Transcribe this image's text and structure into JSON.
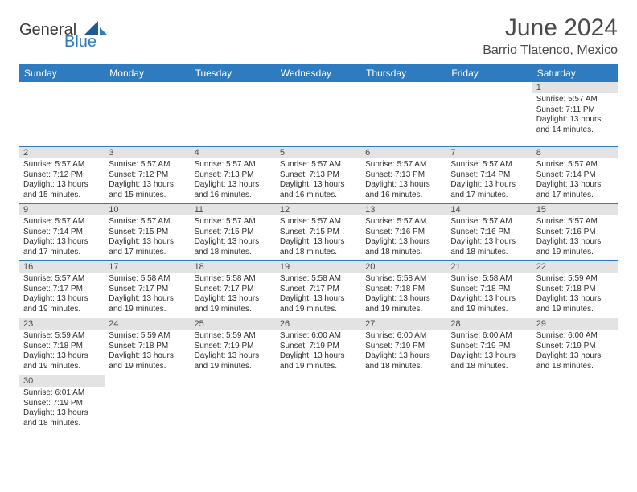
{
  "logo": {
    "word1": "General",
    "word2": "Blue"
  },
  "title": "June 2024",
  "location": "Barrio Tlatenco, Mexico",
  "colors": {
    "header_bg": "#2f7bbf",
    "header_text": "#ffffff",
    "daynum_bg": "#e3e3e3",
    "cell_border": "#2f7bbf",
    "body_text": "#303030",
    "title_text": "#4a4a4a"
  },
  "weekday_labels": [
    "Sunday",
    "Monday",
    "Tuesday",
    "Wednesday",
    "Thursday",
    "Friday",
    "Saturday"
  ],
  "days": {
    "1": {
      "sunrise": "5:57 AM",
      "sunset": "7:11 PM",
      "daylight": "13 hours and 14 minutes."
    },
    "2": {
      "sunrise": "5:57 AM",
      "sunset": "7:12 PM",
      "daylight": "13 hours and 15 minutes."
    },
    "3": {
      "sunrise": "5:57 AM",
      "sunset": "7:12 PM",
      "daylight": "13 hours and 15 minutes."
    },
    "4": {
      "sunrise": "5:57 AM",
      "sunset": "7:13 PM",
      "daylight": "13 hours and 16 minutes."
    },
    "5": {
      "sunrise": "5:57 AM",
      "sunset": "7:13 PM",
      "daylight": "13 hours and 16 minutes."
    },
    "6": {
      "sunrise": "5:57 AM",
      "sunset": "7:13 PM",
      "daylight": "13 hours and 16 minutes."
    },
    "7": {
      "sunrise": "5:57 AM",
      "sunset": "7:14 PM",
      "daylight": "13 hours and 17 minutes."
    },
    "8": {
      "sunrise": "5:57 AM",
      "sunset": "7:14 PM",
      "daylight": "13 hours and 17 minutes."
    },
    "9": {
      "sunrise": "5:57 AM",
      "sunset": "7:14 PM",
      "daylight": "13 hours and 17 minutes."
    },
    "10": {
      "sunrise": "5:57 AM",
      "sunset": "7:15 PM",
      "daylight": "13 hours and 17 minutes."
    },
    "11": {
      "sunrise": "5:57 AM",
      "sunset": "7:15 PM",
      "daylight": "13 hours and 18 minutes."
    },
    "12": {
      "sunrise": "5:57 AM",
      "sunset": "7:15 PM",
      "daylight": "13 hours and 18 minutes."
    },
    "13": {
      "sunrise": "5:57 AM",
      "sunset": "7:16 PM",
      "daylight": "13 hours and 18 minutes."
    },
    "14": {
      "sunrise": "5:57 AM",
      "sunset": "7:16 PM",
      "daylight": "13 hours and 18 minutes."
    },
    "15": {
      "sunrise": "5:57 AM",
      "sunset": "7:16 PM",
      "daylight": "13 hours and 19 minutes."
    },
    "16": {
      "sunrise": "5:57 AM",
      "sunset": "7:17 PM",
      "daylight": "13 hours and 19 minutes."
    },
    "17": {
      "sunrise": "5:58 AM",
      "sunset": "7:17 PM",
      "daylight": "13 hours and 19 minutes."
    },
    "18": {
      "sunrise": "5:58 AM",
      "sunset": "7:17 PM",
      "daylight": "13 hours and 19 minutes."
    },
    "19": {
      "sunrise": "5:58 AM",
      "sunset": "7:17 PM",
      "daylight": "13 hours and 19 minutes."
    },
    "20": {
      "sunrise": "5:58 AM",
      "sunset": "7:18 PM",
      "daylight": "13 hours and 19 minutes."
    },
    "21": {
      "sunrise": "5:58 AM",
      "sunset": "7:18 PM",
      "daylight": "13 hours and 19 minutes."
    },
    "22": {
      "sunrise": "5:59 AM",
      "sunset": "7:18 PM",
      "daylight": "13 hours and 19 minutes."
    },
    "23": {
      "sunrise": "5:59 AM",
      "sunset": "7:18 PM",
      "daylight": "13 hours and 19 minutes."
    },
    "24": {
      "sunrise": "5:59 AM",
      "sunset": "7:18 PM",
      "daylight": "13 hours and 19 minutes."
    },
    "25": {
      "sunrise": "5:59 AM",
      "sunset": "7:19 PM",
      "daylight": "13 hours and 19 minutes."
    },
    "26": {
      "sunrise": "6:00 AM",
      "sunset": "7:19 PM",
      "daylight": "13 hours and 19 minutes."
    },
    "27": {
      "sunrise": "6:00 AM",
      "sunset": "7:19 PM",
      "daylight": "13 hours and 18 minutes."
    },
    "28": {
      "sunrise": "6:00 AM",
      "sunset": "7:19 PM",
      "daylight": "13 hours and 18 minutes."
    },
    "29": {
      "sunrise": "6:00 AM",
      "sunset": "7:19 PM",
      "daylight": "13 hours and 18 minutes."
    },
    "30": {
      "sunrise": "6:01 AM",
      "sunset": "7:19 PM",
      "daylight": "13 hours and 18 minutes."
    }
  },
  "labels": {
    "sunrise": "Sunrise: ",
    "sunset": "Sunset: ",
    "daylight": "Daylight: "
  },
  "calendar_layout": {
    "rows": [
      [
        null,
        null,
        null,
        null,
        null,
        null,
        "1"
      ],
      [
        "2",
        "3",
        "4",
        "5",
        "6",
        "7",
        "8"
      ],
      [
        "9",
        "10",
        "11",
        "12",
        "13",
        "14",
        "15"
      ],
      [
        "16",
        "17",
        "18",
        "19",
        "20",
        "21",
        "22"
      ],
      [
        "23",
        "24",
        "25",
        "26",
        "27",
        "28",
        "29"
      ],
      [
        "30",
        null,
        null,
        null,
        null,
        null,
        null
      ]
    ]
  }
}
